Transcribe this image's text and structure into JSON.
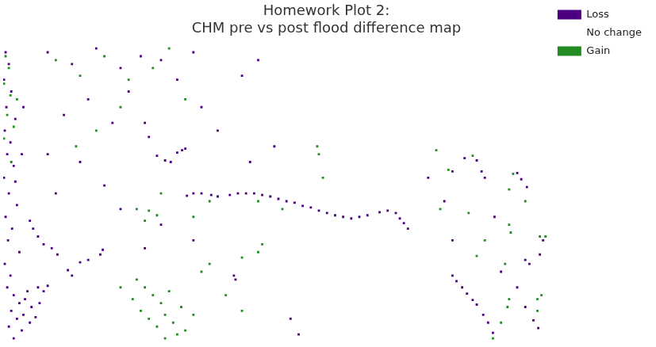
{
  "chart_data": {
    "type": "scatter",
    "title": [
      "Homework Plot 2:",
      "CHM pre vs post flood difference map"
    ],
    "xlim": [
      5,
      680
    ],
    "ylim": [
      430,
      45
    ],
    "grid": false,
    "tick_labels": false,
    "legend": "right",
    "marker": "square",
    "series": [
      {
        "name": "Loss",
        "color": "#4b0082",
        "values": [
          [
            8,
            60
          ],
          [
            12,
            75
          ],
          [
            6,
            95
          ],
          [
            15,
            110
          ],
          [
            9,
            130
          ],
          [
            20,
            145
          ],
          [
            7,
            160
          ],
          [
            14,
            175
          ],
          [
            10,
            190
          ],
          [
            18,
            205
          ],
          [
            6,
            220
          ],
          [
            12,
            240
          ],
          [
            22,
            255
          ],
          [
            8,
            270
          ],
          [
            16,
            285
          ],
          [
            11,
            300
          ],
          [
            25,
            315
          ],
          [
            7,
            330
          ],
          [
            14,
            345
          ],
          [
            20,
            225
          ],
          [
            28,
            190
          ],
          [
            30,
            130
          ],
          [
            10,
            360
          ],
          [
            18,
            370
          ],
          [
            25,
            380
          ],
          [
            32,
            375
          ],
          [
            40,
            385
          ],
          [
            15,
            390
          ],
          [
            22,
            400
          ],
          [
            30,
            395
          ],
          [
            12,
            410
          ],
          [
            38,
            405
          ],
          [
            45,
            398
          ],
          [
            28,
            415
          ],
          [
            18,
            425
          ],
          [
            50,
            380
          ],
          [
            55,
            365
          ],
          [
            60,
            358
          ],
          [
            48,
            360
          ],
          [
            35,
            365
          ],
          [
            38,
            275
          ],
          [
            42,
            285
          ],
          [
            48,
            295
          ],
          [
            55,
            305
          ],
          [
            65,
            310
          ],
          [
            72,
            318
          ],
          [
            100,
            328
          ],
          [
            110,
            325
          ],
          [
            125,
            318
          ],
          [
            128,
            312
          ],
          [
            85,
            338
          ],
          [
            90,
            345
          ],
          [
            60,
            60
          ],
          [
            90,
            75
          ],
          [
            120,
            55
          ],
          [
            150,
            80
          ],
          [
            175,
            65
          ],
          [
            200,
            70
          ],
          [
            220,
            95
          ],
          [
            240,
            60
          ],
          [
            110,
            120
          ],
          [
            80,
            140
          ],
          [
            140,
            150
          ],
          [
            160,
            110
          ],
          [
            60,
            190
          ],
          [
            100,
            200
          ],
          [
            130,
            230
          ],
          [
            70,
            240
          ],
          [
            150,
            260
          ],
          [
            200,
            280
          ],
          [
            240,
            300
          ],
          [
            180,
            310
          ],
          [
            320,
            70
          ],
          [
            300,
            90
          ],
          [
            250,
            130
          ],
          [
            270,
            160
          ],
          [
            340,
            180
          ],
          [
            310,
            200
          ],
          [
            180,
            150
          ],
          [
            185,
            168
          ],
          [
            195,
            192
          ],
          [
            205,
            198
          ],
          [
            212,
            200
          ],
          [
            220,
            188
          ],
          [
            226,
            185
          ],
          [
            230,
            183
          ],
          [
            232,
            243
          ],
          [
            240,
            240
          ],
          [
            250,
            240
          ],
          [
            262,
            242
          ],
          [
            270,
            244
          ],
          [
            285,
            242
          ],
          [
            295,
            240
          ],
          [
            305,
            240
          ],
          [
            315,
            240
          ],
          [
            325,
            242
          ],
          [
            335,
            244
          ],
          [
            345,
            247
          ],
          [
            355,
            250
          ],
          [
            365,
            252
          ],
          [
            375,
            256
          ],
          [
            385,
            258
          ],
          [
            395,
            262
          ],
          [
            405,
            265
          ],
          [
            415,
            268
          ],
          [
            425,
            270
          ],
          [
            435,
            272
          ],
          [
            445,
            270
          ],
          [
            455,
            268
          ],
          [
            470,
            264
          ],
          [
            480,
            262
          ],
          [
            490,
            265
          ],
          [
            495,
            272
          ],
          [
            500,
            278
          ],
          [
            505,
            285
          ],
          [
            290,
            345
          ],
          [
            292,
            350
          ],
          [
            370,
            420
          ],
          [
            360,
            400
          ],
          [
            560,
            345
          ],
          [
            565,
            352
          ],
          [
            572,
            360
          ],
          [
            578,
            368
          ],
          [
            585,
            376
          ],
          [
            590,
            382
          ],
          [
            598,
            395
          ],
          [
            604,
            405
          ],
          [
            610,
            418
          ],
          [
            575,
            195
          ],
          [
            590,
            198
          ],
          [
            596,
            212
          ],
          [
            600,
            220
          ],
          [
            560,
            212
          ],
          [
            640,
            214
          ],
          [
            645,
            222
          ],
          [
            652,
            232
          ],
          [
            650,
            325
          ],
          [
            655,
            330
          ],
          [
            668,
            318
          ],
          [
            640,
            360
          ],
          [
            650,
            385
          ],
          [
            660,
            402
          ],
          [
            666,
            412
          ],
          [
            672,
            300
          ],
          [
            620,
            340
          ],
          [
            612,
            270
          ],
          [
            560,
            300
          ],
          [
            550,
            250
          ],
          [
            530,
            220
          ]
        ]
      },
      {
        "name": "No change",
        "color": "#ffffff",
        "values": []
      },
      {
        "name": "Gain",
        "color": "#228b22",
        "values": [
          [
            8,
            65
          ],
          [
            12,
            80
          ],
          [
            6,
            100
          ],
          [
            14,
            115
          ],
          [
            10,
            140
          ],
          [
            18,
            155
          ],
          [
            22,
            120
          ],
          [
            6,
            170
          ],
          [
            15,
            200
          ],
          [
            70,
            70
          ],
          [
            100,
            90
          ],
          [
            130,
            65
          ],
          [
            160,
            95
          ],
          [
            190,
            80
          ],
          [
            210,
            55
          ],
          [
            230,
            120
          ],
          [
            150,
            130
          ],
          [
            120,
            160
          ],
          [
            95,
            180
          ],
          [
            200,
            240
          ],
          [
            170,
            260
          ],
          [
            240,
            270
          ],
          [
            260,
            250
          ],
          [
            320,
            250
          ],
          [
            350,
            260
          ],
          [
            185,
            262
          ],
          [
            195,
            268
          ],
          [
            180,
            275
          ],
          [
            170,
            350
          ],
          [
            180,
            360
          ],
          [
            190,
            370
          ],
          [
            200,
            380
          ],
          [
            175,
            390
          ],
          [
            185,
            400
          ],
          [
            195,
            410
          ],
          [
            205,
            395
          ],
          [
            215,
            405
          ],
          [
            225,
            385
          ],
          [
            210,
            365
          ],
          [
            230,
            415
          ],
          [
            165,
            375
          ],
          [
            240,
            395
          ],
          [
            150,
            360
          ],
          [
            220,
            420
          ],
          [
            205,
            425
          ],
          [
            320,
            315
          ],
          [
            325,
            305
          ],
          [
            300,
            322
          ],
          [
            260,
            330
          ],
          [
            250,
            340
          ],
          [
            280,
            370
          ],
          [
            300,
            390
          ],
          [
            393,
            180
          ],
          [
            395,
            190
          ],
          [
            400,
            220
          ],
          [
            540,
            185
          ],
          [
            555,
            210
          ],
          [
            585,
            192
          ],
          [
            635,
            215
          ],
          [
            630,
            235
          ],
          [
            580,
            265
          ],
          [
            630,
            280
          ],
          [
            632,
            290
          ],
          [
            675,
            295
          ],
          [
            668,
            295
          ],
          [
            600,
            300
          ],
          [
            625,
            330
          ],
          [
            630,
            375
          ],
          [
            628,
            385
          ],
          [
            665,
            375
          ],
          [
            670,
            370
          ],
          [
            665,
            390
          ],
          [
            610,
            425
          ],
          [
            620,
            405
          ],
          [
            545,
            260
          ],
          [
            590,
            320
          ],
          [
            650,
            250
          ]
        ]
      }
    ]
  }
}
